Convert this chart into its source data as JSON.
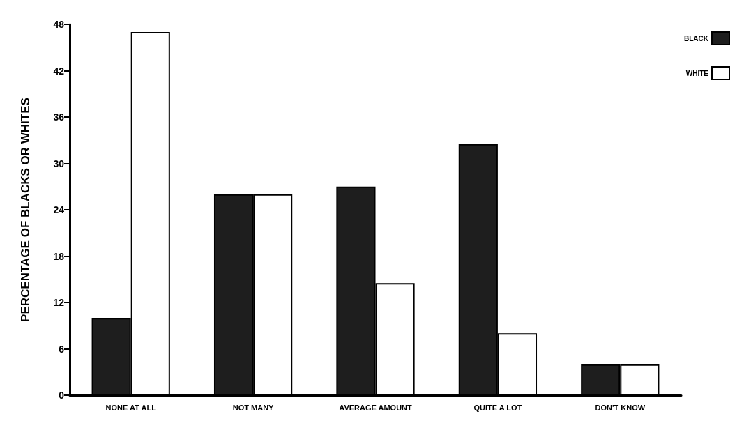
{
  "chart_data": {
    "type": "bar",
    "ylabel": "PERCENTAGE OF BLACKS OR WHITES",
    "categories": [
      "NONE AT ALL",
      "NOT MANY",
      "AVERAGE AMOUNT",
      "QUITE A LOT",
      "DON'T KNOW"
    ],
    "series": [
      {
        "name": "BLACK",
        "color": "#1e1e1e",
        "values": [
          10,
          26,
          27,
          32.5,
          4
        ]
      },
      {
        "name": "WHITE",
        "color": "#ffffff",
        "values": [
          47,
          26,
          14.5,
          8,
          4
        ]
      }
    ],
    "ylim": [
      0,
      48
    ],
    "yticks": [
      0,
      6,
      12,
      18,
      24,
      30,
      36,
      42,
      48
    ],
    "grid": false,
    "legend": "top right"
  }
}
